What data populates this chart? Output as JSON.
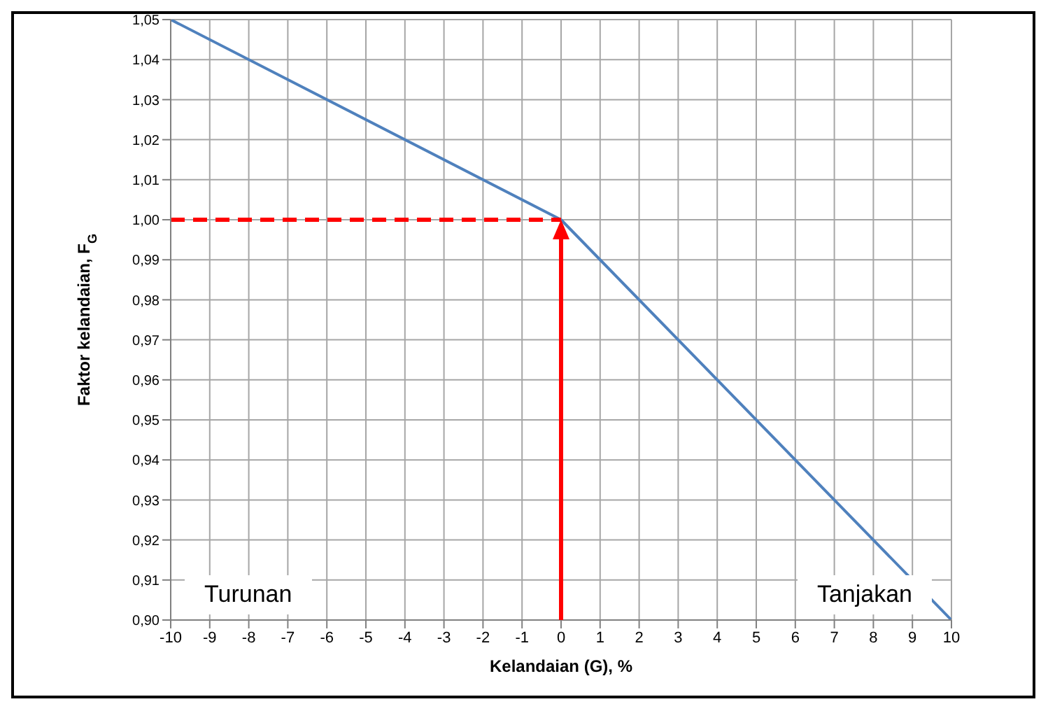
{
  "chart_data": {
    "type": "line",
    "xlabel": "Kelandaian (G), %",
    "ylabel": "Faktor kelandaian, F$_{G}$",
    "x": [
      -10,
      0,
      10
    ],
    "series": [
      {
        "color": "#4f81bd",
        "values": [
          1.05,
          1.0,
          0.9
        ]
      },
      {
        "color": "#ff0000",
        "x": [
          -10,
          0
        ],
        "values": [
          1.0,
          1.0
        ],
        "line_style": "dashed"
      }
    ],
    "xlim": [
      -10,
      10
    ],
    "xticks": [
      -10,
      -9,
      -8,
      -7,
      -6,
      -5,
      -4,
      -3,
      -2,
      -1,
      0,
      1,
      2,
      3,
      4,
      5,
      6,
      7,
      8,
      9,
      10
    ],
    "ylim": [
      0.9,
      1.05
    ],
    "yticks": [
      {
        "value": 0.9,
        "label": "0,90"
      },
      {
        "value": 0.91,
        "label": "0,91"
      },
      {
        "value": 0.92,
        "label": "0,92"
      },
      {
        "value": 0.93,
        "label": "0,93"
      },
      {
        "value": 0.94,
        "label": "0,94"
      },
      {
        "value": 0.95,
        "label": "0,95"
      },
      {
        "value": 0.96,
        "label": "0,96"
      },
      {
        "value": 0.97,
        "label": "0,97"
      },
      {
        "value": 0.98,
        "label": "0,98"
      },
      {
        "value": 0.99,
        "label": "0,99"
      },
      {
        "value": 1.0,
        "label": "1,00"
      },
      {
        "value": 1.01,
        "label": "1,01"
      },
      {
        "value": 1.02,
        "label": "1,02"
      },
      {
        "value": 1.03,
        "label": "1,03"
      },
      {
        "value": 1.04,
        "label": "1,04"
      },
      {
        "value": 1.05,
        "label": "1,05"
      }
    ],
    "grid": true,
    "marker": "none",
    "line_style": "solid",
    "annotations": [
      "Turunan",
      "Tanjakan"
    ]
  }
}
